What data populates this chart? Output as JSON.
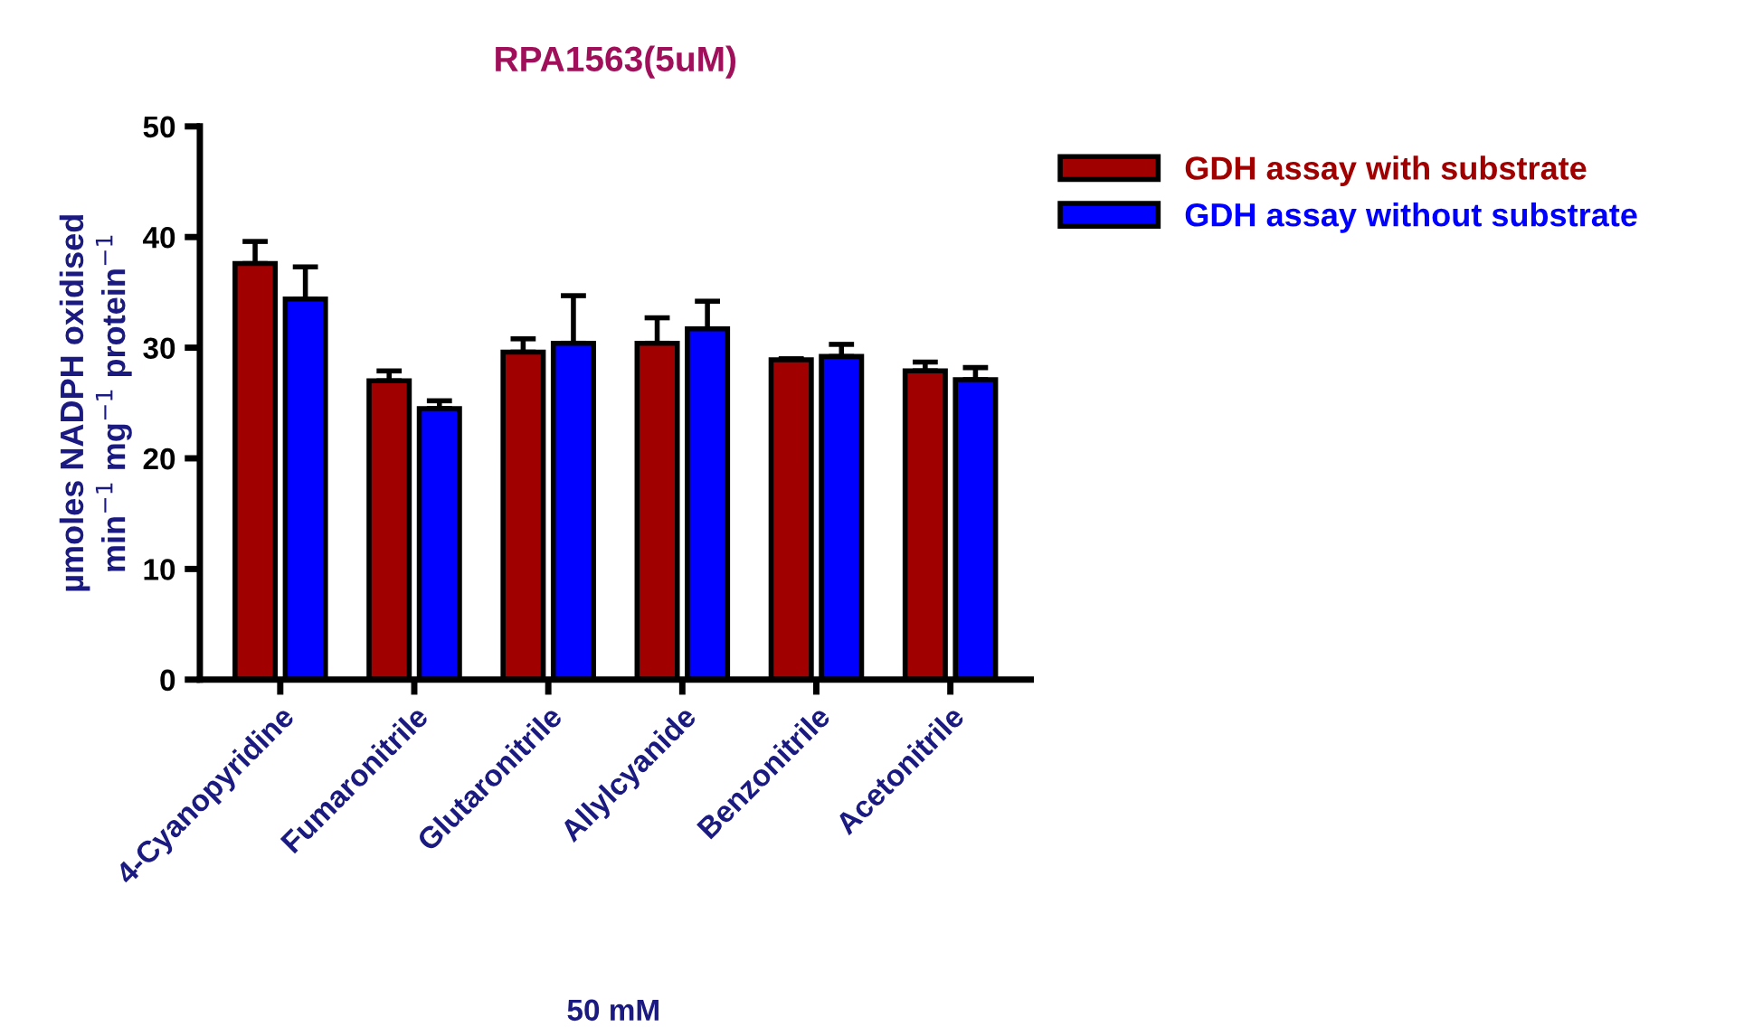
{
  "chart_data": {
    "type": "bar",
    "title": "RPA1563(5uM)",
    "xlabel": "50 mM",
    "ylabel": "µmoles NADPH oxidised\nmin$^{−1}$ mg$^{−1}$ protein$^{−1}$",
    "categories": [
      "4-Cyanopyridine",
      "Fumaronitrile",
      "Glutaronitrile",
      "Allylcyanide",
      "Benzonitrile",
      "Acetonitrile"
    ],
    "series": [
      {
        "name": "GDH assay with substrate",
        "color": "#a00000",
        "values": [
          37.6,
          27.0,
          29.6,
          30.4,
          28.9,
          27.9
        ],
        "errors": [
          [
            37.6,
            39.6
          ],
          [
            27.0,
            27.9
          ],
          [
            29.6,
            30.8
          ],
          [
            30.4,
            32.7
          ],
          [
            28.9,
            29.0
          ],
          [
            27.9,
            28.7
          ]
        ]
      },
      {
        "name": "GDH assay without substrate",
        "color": "#0000ff",
        "values": [
          34.4,
          24.5,
          30.4,
          31.7,
          29.2,
          27.1
        ],
        "errors": [
          [
            34.4,
            37.3
          ],
          [
            24.5,
            25.2
          ],
          [
            30.4,
            34.7
          ],
          [
            31.7,
            34.2
          ],
          [
            29.2,
            30.3
          ],
          [
            27.1,
            28.2
          ]
        ]
      }
    ],
    "ylim": [
      0,
      50
    ],
    "yticks": [
      0,
      10,
      20,
      30,
      40,
      50
    ],
    "grid": false,
    "legend": "top right"
  }
}
